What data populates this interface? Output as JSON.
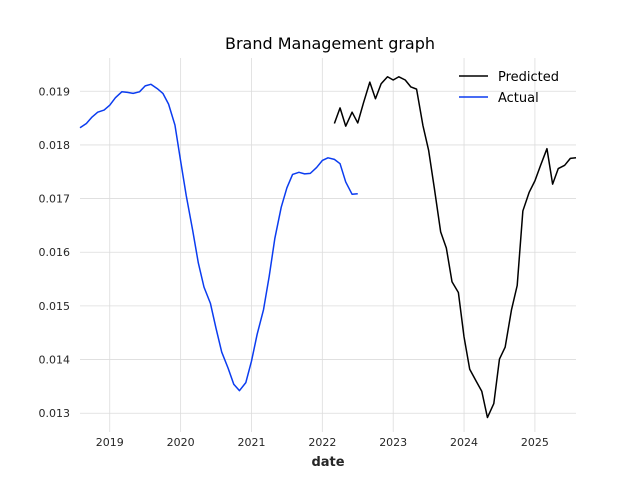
{
  "chart_data": {
    "type": "line",
    "title": "Brand Management graph",
    "xlabel": "date",
    "ylabel": "",
    "xlim": [
      2018.58,
      2025.58
    ],
    "ylim": [
      0.01265,
      0.01962
    ],
    "grid": true,
    "legend_position": "top-right",
    "x_ticks": [
      2019,
      2020,
      2021,
      2022,
      2023,
      2024,
      2025
    ],
    "x_tick_labels": [
      "2019",
      "2020",
      "2021",
      "2022",
      "2023",
      "2024",
      "2025"
    ],
    "y_ticks": [
      0.013,
      0.014,
      0.015,
      0.016,
      0.017,
      0.018,
      0.019
    ],
    "y_tick_labels": [
      "0.013",
      "0.014",
      "0.015",
      "0.016",
      "0.017",
      "0.018",
      "0.019"
    ],
    "series": [
      {
        "name": "Predicted",
        "color": "#000000",
        "x": [
          2022.17,
          2022.25,
          2022.33,
          2022.42,
          2022.5,
          2022.58,
          2022.67,
          2022.75,
          2022.83,
          2022.92,
          2023.0,
          2023.08,
          2023.17,
          2023.25,
          2023.33,
          2023.42,
          2023.5,
          2023.58,
          2023.67,
          2023.75,
          2023.83,
          2023.92,
          2024.0,
          2024.08,
          2024.17,
          2024.25,
          2024.33,
          2024.42,
          2024.5,
          2024.58,
          2024.67,
          2024.75,
          2024.83,
          2024.92,
          2025.0,
          2025.08,
          2025.17,
          2025.25,
          2025.33,
          2025.42,
          2025.5,
          2025.58
        ],
        "y": [
          0.0184,
          0.01869,
          0.01835,
          0.01861,
          0.01841,
          0.01878,
          0.01917,
          0.01886,
          0.01914,
          0.01927,
          0.01921,
          0.01927,
          0.01921,
          0.01908,
          0.01904,
          0.01836,
          0.0179,
          0.0172,
          0.01638,
          0.01608,
          0.01545,
          0.01525,
          0.01442,
          0.01382,
          0.0136,
          0.01341,
          0.01292,
          0.01318,
          0.01401,
          0.01423,
          0.01493,
          0.01538,
          0.01677,
          0.01712,
          0.01733,
          0.01762,
          0.01793,
          0.01727,
          0.01756,
          0.01762,
          0.01775,
          0.01776
        ]
      },
      {
        "name": "Actual",
        "color": "#0b3cf0",
        "x": [
          2018.58,
          2018.67,
          2018.75,
          2018.83,
          2018.92,
          2019.0,
          2019.08,
          2019.17,
          2019.25,
          2019.33,
          2019.42,
          2019.5,
          2019.58,
          2019.67,
          2019.75,
          2019.83,
          2019.92,
          2020.0,
          2020.08,
          2020.17,
          2020.25,
          2020.33,
          2020.42,
          2020.5,
          2020.58,
          2020.67,
          2020.75,
          2020.83,
          2020.92,
          2021.0,
          2021.08,
          2021.17,
          2021.25,
          2021.33,
          2021.42,
          2021.5,
          2021.58,
          2021.67,
          2021.75,
          2021.83,
          2021.92,
          2022.0,
          2022.08,
          2022.17,
          2022.25,
          2022.33,
          2022.42,
          2022.5
        ],
        "y": [
          0.01832,
          0.0184,
          0.01852,
          0.01861,
          0.01865,
          0.01874,
          0.01888,
          0.01899,
          0.01898,
          0.01896,
          0.01899,
          0.0191,
          0.01913,
          0.01905,
          0.01896,
          0.01876,
          0.01837,
          0.0177,
          0.01705,
          0.01641,
          0.0158,
          0.01535,
          0.01505,
          0.01458,
          0.01414,
          0.01384,
          0.01354,
          0.01342,
          0.01357,
          0.01397,
          0.01447,
          0.01493,
          0.01555,
          0.01626,
          0.01684,
          0.0172,
          0.01745,
          0.01749,
          0.01746,
          0.01747,
          0.01758,
          0.01771,
          0.01776,
          0.01773,
          0.01765,
          0.01731,
          0.01708,
          0.01709
        ]
      }
    ]
  }
}
